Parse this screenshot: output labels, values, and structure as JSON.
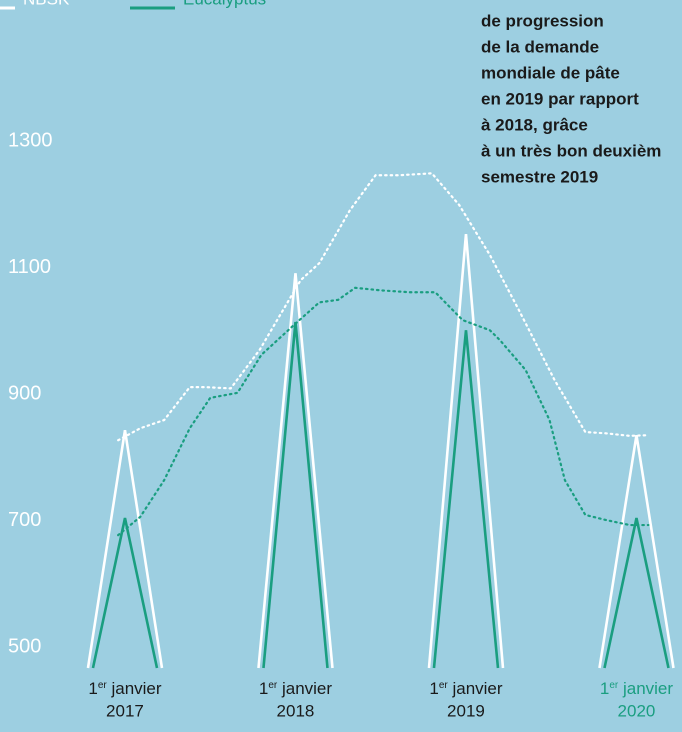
{
  "chart_data": {
    "type": "line",
    "legend": {
      "position": "top-left"
    },
    "annotation": [
      "de progression",
      "de la demande",
      "mondiale de pâte",
      "en 2019 par rapport",
      "à 2018, grâce",
      "à un très bon deuxièm",
      "semestre 2019"
    ],
    "xlim": [
      2016.267,
      2020.267
    ],
    "xticks": [
      {
        "value": 2017,
        "label": "2017"
      },
      {
        "value": 2018,
        "label": "2018"
      },
      {
        "value": 2019,
        "label": "2019"
      },
      {
        "value": 2020,
        "label": "2020"
      }
    ],
    "tick_caption": {
      "number": "1",
      "suffix": "er",
      "text": " janvier"
    },
    "highlight_tick": 3,
    "highlight_color": "#1a9e80",
    "ylim": [
      467,
      1523
    ],
    "yticks": [
      500,
      700,
      900,
      1100,
      1300
    ],
    "series": [
      {
        "name": "NBSK",
        "color": "#ffffff",
        "x": [
          2016.96,
          2017.09,
          2017.23,
          2017.38,
          2017.47,
          2017.62,
          2017.79,
          2018.03,
          2018.14,
          2018.32,
          2018.47,
          2018.61,
          2018.8,
          2018.96,
          2019.14,
          2019.31,
          2019.52,
          2019.7,
          2019.82,
          2019.96,
          2020.07
        ],
        "values": [
          827,
          846,
          859,
          911,
          911,
          909,
          970,
          1080,
          1107,
          1191,
          1246,
          1246,
          1249,
          1199,
          1120,
          1033,
          922,
          840,
          838,
          834,
          835
        ],
        "annual_peaks": [
          843,
          1091,
          1153,
          835
        ]
      },
      {
        "name": "Eucalyptus",
        "color": "#1a9e80",
        "x": [
          2016.96,
          2017.09,
          2017.23,
          2017.38,
          2017.5,
          2017.66,
          2017.8,
          2017.99,
          2018.14,
          2018.25,
          2018.35,
          2018.5,
          2018.67,
          2018.82,
          2018.98,
          2019.14,
          2019.2,
          2019.35,
          2019.49,
          2019.58,
          2019.7,
          2019.82,
          2019.96,
          2020.07
        ],
        "values": [
          677,
          706,
          764,
          846,
          894,
          902,
          962,
          1009,
          1045,
          1049,
          1068,
          1064,
          1061,
          1061,
          1017,
          1001,
          985,
          938,
          859,
          764,
          709,
          701,
          693,
          693
        ],
        "annual_peaks": [
          704,
          1014,
          1001,
          704
        ]
      }
    ]
  }
}
